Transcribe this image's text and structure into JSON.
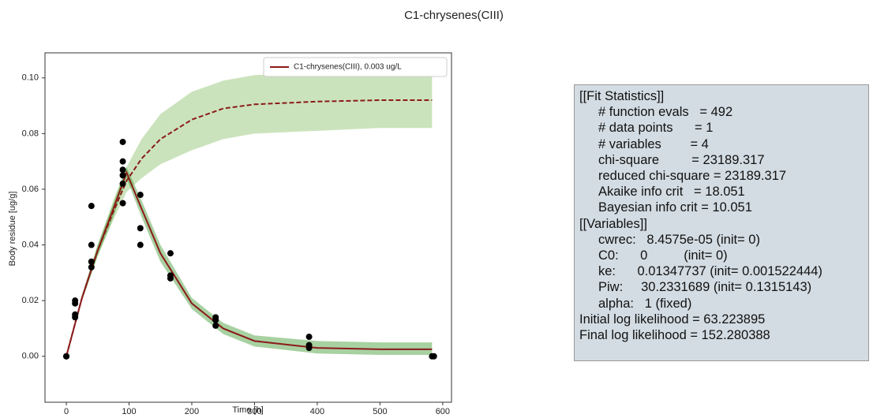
{
  "chart_data": {
    "type": "line",
    "title": "C1-chrysenes(CIII)",
    "xlabel": "Time [h]",
    "ylabel": "Body residue [ug/g]",
    "xlim": [
      -34,
      614
    ],
    "ylim": [
      -0.0165,
      0.109
    ],
    "xticks": [
      0,
      100,
      200,
      300,
      400,
      500,
      600
    ],
    "yticks": [
      {
        "value": 0,
        "label": "0.00"
      },
      {
        "value": 0.02,
        "label": "0.02"
      },
      {
        "value": 0.04,
        "label": "0.04"
      },
      {
        "value": 0.06,
        "label": "0.06"
      },
      {
        "value": 0.08,
        "label": "0.08"
      },
      {
        "value": 0.1,
        "label": "0.10"
      }
    ],
    "legend": "upper right",
    "x": [
      0,
      25,
      50,
      75,
      96,
      120,
      150,
      200,
      250,
      300,
      400,
      500,
      583
    ],
    "bands": [
      {
        "color": "#8cc06a",
        "upper": [
          0,
          0.022,
          0.04,
          0.056,
          0.068,
          0.078,
          0.087,
          0.095,
          0.099,
          0.101,
          0.102,
          0.102,
          0.102
        ],
        "lower": [
          0,
          0.02,
          0.036,
          0.049,
          0.059,
          0.064,
          0.069,
          0.074,
          0.078,
          0.08,
          0.081,
          0.082,
          0.082
        ]
      },
      {
        "color": "#3f9a2e",
        "upper": [
          0,
          0.022,
          0.04,
          0.055,
          0.068,
          0.056,
          0.04,
          0.021,
          0.012,
          0.0075,
          0.0055,
          0.005,
          0.005
        ],
        "lower": [
          0,
          0.02,
          0.036,
          0.05,
          0.064,
          0.05,
          0.034,
          0.017,
          0.008,
          0.0035,
          0.001,
          0.0005,
          0.0005
        ]
      }
    ],
    "series": [
      {
        "name": "C1-chrysenes(CIII), 0.003 ug/L",
        "color": "#8b1a1a",
        "values": [
          0,
          0.021,
          0.038,
          0.053,
          0.066,
          0.053,
          0.037,
          0.019,
          0.01,
          0.0055,
          0.003,
          0.0025,
          0.0025
        ]
      },
      {
        "color": "#8b1a1a",
        "style": "dashed",
        "values": [
          0,
          0.021,
          0.038,
          0.052,
          0.063,
          0.071,
          0.078,
          0.085,
          0.089,
          0.0905,
          0.0915,
          0.092,
          0.092
        ]
      }
    ],
    "points": {
      "color": "#000000",
      "x": [
        0,
        0,
        14,
        14,
        14,
        14,
        40,
        40,
        40,
        40,
        90,
        90,
        90,
        90,
        90,
        90,
        118,
        118,
        118,
        166,
        166,
        166,
        238,
        238,
        238,
        387,
        387,
        387,
        583,
        586
      ],
      "values": [
        0,
        0,
        0.019,
        0.02,
        0.015,
        0.014,
        0.054,
        0.04,
        0.034,
        0.032,
        0.077,
        0.07,
        0.067,
        0.065,
        0.062,
        0.055,
        0.058,
        0.046,
        0.04,
        0.037,
        0.029,
        0.028,
        0.014,
        0.013,
        0.011,
        0.007,
        0.004,
        0.003,
        0,
        0
      ]
    }
  },
  "report": {
    "lines": [
      "[[Fit Statistics]]",
      "# function evals   = 492",
      "# data points      = 1",
      "# variables        = 4",
      "chi-square         = 23189.317",
      "reduced chi-square = 23189.317",
      "Akaike info crit   = 18.051",
      "Bayesian info crit = 10.051",
      "[[Variables]]",
      "cwrec:   8.4575e-05 (init= 0)",
      "C0:      0          (init= 0)",
      "ke:      0.01347737 (init= 0.001522444)",
      "Piw:     30.2331689 (init= 0.1315143)",
      "alpha:   1 (fixed)",
      "Initial log likelihood = 63.223895",
      "Final log likelihood = 152.280388"
    ]
  }
}
